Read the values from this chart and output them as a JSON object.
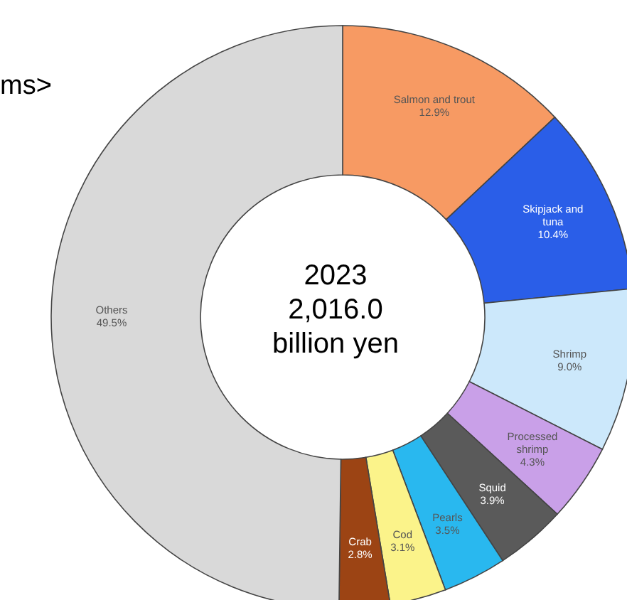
{
  "chart_data": {
    "type": "donut",
    "title": "ms>",
    "categories": [
      "Salmon and trout",
      "Skipjack and tuna",
      "Shrimp",
      "Processed shrimp",
      "Squid",
      "Pearls",
      "Cod",
      "Crab",
      "Others"
    ],
    "values": [
      12.9,
      10.4,
      9.0,
      4.3,
      3.9,
      3.5,
      3.1,
      2.8,
      49.5
    ],
    "colors": [
      "#f79a63",
      "#2a5ee8",
      "#cce8fb",
      "#c9a0e8",
      "#5a5a5a",
      "#29b8ef",
      "#fbf38a",
      "#9c4414",
      "#d9d9d9"
    ],
    "value_labels": [
      "12.9%",
      "10.4%",
      "9.0%",
      "4.3%",
      "3.9%",
      "3.5%",
      "3.1%",
      "2.8%",
      "49.5%"
    ],
    "annotations": [
      "2023",
      "2,016.0",
      "billion yen"
    ]
  }
}
